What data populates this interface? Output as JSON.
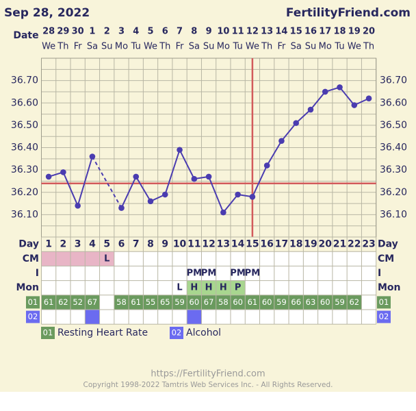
{
  "chart_data": {
    "type": "line",
    "title": "Sep 28, 2022",
    "site": "FertilityFriend.com",
    "date_label": "Date",
    "dates": [
      28,
      29,
      30,
      1,
      2,
      3,
      4,
      5,
      6,
      7,
      8,
      9,
      10,
      11,
      12,
      13,
      14,
      15,
      16,
      17,
      18,
      19,
      20
    ],
    "weekdays": [
      "We",
      "Th",
      "Fr",
      "Sa",
      "Su",
      "Mo",
      "Tu",
      "We",
      "Th",
      "Fr",
      "Sa",
      "Su",
      "Mo",
      "Tu",
      "We",
      "Th",
      "Fr",
      "Sa",
      "Su",
      "Mo",
      "Tu",
      "We",
      "Th"
    ],
    "day_label": "Day",
    "days": [
      1,
      2,
      3,
      4,
      5,
      6,
      7,
      8,
      9,
      10,
      11,
      12,
      13,
      14,
      15,
      16,
      17,
      18,
      19,
      20,
      21,
      22,
      23
    ],
    "values": [
      36.27,
      36.29,
      36.14,
      36.36,
      null,
      36.13,
      36.27,
      36.16,
      36.19,
      36.39,
      36.26,
      36.27,
      36.11,
      36.19,
      36.18,
      36.32,
      36.43,
      36.51,
      36.57,
      36.65,
      36.67,
      36.59,
      36.62
    ],
    "color": "#4a3cb0",
    "gap_style": "dashed",
    "ylim": [
      36.0,
      36.8
    ],
    "yticks": [
      {
        "value": 36.1,
        "label": "36.10"
      },
      {
        "value": 36.2,
        "label": "36.20"
      },
      {
        "value": 36.3,
        "label": "36.30"
      },
      {
        "value": 36.4,
        "label": "36.40"
      },
      {
        "value": 36.5,
        "label": "36.50"
      },
      {
        "value": 36.6,
        "label": "36.60"
      },
      {
        "value": 36.7,
        "label": "36.70"
      }
    ],
    "grid_lines": [
      36.05,
      36.1,
      36.15,
      36.2,
      36.25,
      36.3,
      36.35,
      36.4,
      36.45,
      36.5,
      36.55,
      36.6,
      36.65,
      36.7,
      36.75
    ],
    "grid": true,
    "coverline": 36.24,
    "ovulation_day": 15,
    "marker_line_color": "#d25a5c",
    "rows": {
      "cm": {
        "label": "CM",
        "fill": "#e8b5c6",
        "values": [
          null,
          null,
          null,
          null,
          "L",
          null,
          null,
          null,
          null,
          null,
          null,
          null,
          null,
          null,
          null,
          null,
          null,
          null,
          null,
          null,
          null,
          null,
          null
        ],
        "marked": [
          true,
          true,
          true,
          true,
          true,
          false,
          false,
          false,
          false,
          false,
          false,
          false,
          false,
          false,
          false,
          false,
          false,
          false,
          false,
          false,
          false,
          false,
          false
        ]
      },
      "intercourse": {
        "label": "I",
        "values": [
          null,
          null,
          null,
          null,
          null,
          null,
          null,
          null,
          null,
          null,
          "PM",
          "PM",
          null,
          "PM",
          "PM",
          null,
          null,
          null,
          null,
          null,
          null,
          null,
          null
        ]
      },
      "mon": {
        "label": "Mon",
        "fill": "#a8d68f",
        "values": [
          null,
          null,
          null,
          null,
          null,
          null,
          null,
          null,
          null,
          "L",
          "H",
          "H",
          "H",
          "P",
          null,
          null,
          null,
          null,
          null,
          null,
          null,
          null,
          null
        ],
        "marked": [
          false,
          false,
          false,
          false,
          false,
          false,
          false,
          false,
          false,
          false,
          true,
          true,
          true,
          true,
          false,
          false,
          false,
          false,
          false,
          false,
          false,
          false,
          false
        ]
      },
      "heart_rate": {
        "code": "01",
        "name": "Resting Heart Rate",
        "color": "#6a9a5e",
        "values": [
          61,
          62,
          52,
          67,
          null,
          58,
          61,
          55,
          65,
          59,
          60,
          67,
          58,
          60,
          61,
          60,
          59,
          66,
          63,
          60,
          59,
          62,
          null
        ]
      },
      "alcohol": {
        "code": "02",
        "name": "Alcohol",
        "color": "#6b6bf0",
        "marked": [
          false,
          false,
          false,
          true,
          false,
          false,
          false,
          false,
          false,
          false,
          true,
          false,
          false,
          false,
          false,
          false,
          false,
          false,
          false,
          false,
          false,
          false,
          false
        ]
      }
    },
    "footer": {
      "url": "https://FertilityFriend.com",
      "copyright": "Copyright 1998-2022 Tamtris Web Services Inc. - All Rights Reserved."
    }
  }
}
